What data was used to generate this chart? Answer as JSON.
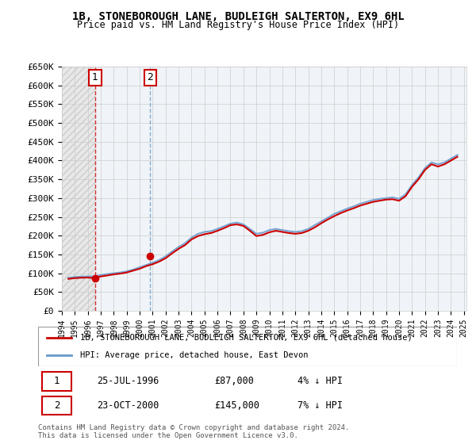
{
  "title": "1B, STONEBOROUGH LANE, BUDLEIGH SALTERTON, EX9 6HL",
  "subtitle": "Price paid vs. HM Land Registry's House Price Index (HPI)",
  "ylabel": "",
  "xlabel": "",
  "ylim": [
    0,
    650000
  ],
  "yticks": [
    0,
    50000,
    100000,
    150000,
    200000,
    250000,
    300000,
    350000,
    400000,
    450000,
    500000,
    550000,
    600000,
    650000
  ],
  "ytick_labels": [
    "£0",
    "£50K",
    "£100K",
    "£150K",
    "£200K",
    "£250K",
    "£300K",
    "£350K",
    "£400K",
    "£450K",
    "£500K",
    "£550K",
    "£600K",
    "£650K"
  ],
  "hpi_years": [
    1994.5,
    1995.0,
    1995.5,
    1996.0,
    1996.5,
    1997.0,
    1997.5,
    1998.0,
    1998.5,
    1999.0,
    1999.5,
    2000.0,
    2000.5,
    2001.0,
    2001.5,
    2002.0,
    2002.5,
    2003.0,
    2003.5,
    2004.0,
    2004.5,
    2005.0,
    2005.5,
    2006.0,
    2006.5,
    2007.0,
    2007.5,
    2008.0,
    2008.5,
    2009.0,
    2009.5,
    2010.0,
    2010.5,
    2011.0,
    2011.5,
    2012.0,
    2012.5,
    2013.0,
    2013.5,
    2014.0,
    2014.5,
    2015.0,
    2015.5,
    2016.0,
    2016.5,
    2017.0,
    2017.5,
    2018.0,
    2018.5,
    2019.0,
    2019.5,
    2020.0,
    2020.5,
    2021.0,
    2021.5,
    2022.0,
    2022.5,
    2023.0,
    2023.5,
    2024.0,
    2024.5
  ],
  "hpi_values": [
    88000,
    90000,
    91000,
    91500,
    92000,
    95000,
    98000,
    100000,
    102000,
    105000,
    110000,
    116000,
    122000,
    128000,
    135000,
    145000,
    158000,
    170000,
    180000,
    195000,
    205000,
    210000,
    212000,
    218000,
    225000,
    232000,
    235000,
    230000,
    218000,
    205000,
    208000,
    215000,
    218000,
    215000,
    212000,
    210000,
    212000,
    218000,
    228000,
    238000,
    248000,
    258000,
    265000,
    272000,
    278000,
    285000,
    290000,
    295000,
    298000,
    300000,
    302000,
    298000,
    310000,
    335000,
    355000,
    380000,
    395000,
    390000,
    395000,
    405000,
    415000
  ],
  "price_years": [
    1994.5,
    1995.0,
    1995.5,
    1996.0,
    1996.5,
    1997.0,
    1997.5,
    1998.0,
    1998.5,
    1999.0,
    1999.5,
    2000.0,
    2000.5,
    2001.0,
    2001.5,
    2002.0,
    2002.5,
    2003.0,
    2003.5,
    2004.0,
    2004.5,
    2005.0,
    2005.5,
    2006.0,
    2006.5,
    2007.0,
    2007.5,
    2008.0,
    2008.5,
    2009.0,
    2009.5,
    2010.0,
    2010.5,
    2011.0,
    2011.5,
    2012.0,
    2012.5,
    2013.0,
    2013.5,
    2014.0,
    2014.5,
    2015.0,
    2015.5,
    2016.0,
    2016.5,
    2017.0,
    2017.5,
    2018.0,
    2018.5,
    2019.0,
    2019.5,
    2020.0,
    2020.5,
    2021.0,
    2021.5,
    2022.0,
    2022.5,
    2023.0,
    2023.5,
    2024.0,
    2024.5
  ],
  "price_values": [
    85000,
    87000,
    88000,
    88500,
    87000,
    91500,
    94000,
    97000,
    99000,
    102000,
    107000,
    112000,
    119000,
    124000,
    131000,
    140000,
    153000,
    165000,
    175000,
    190000,
    199000,
    204000,
    207000,
    213000,
    220000,
    228000,
    230000,
    226000,
    213000,
    199000,
    202000,
    209000,
    213000,
    210000,
    207000,
    205000,
    207000,
    213000,
    222000,
    233000,
    243000,
    252000,
    260000,
    267000,
    273000,
    280000,
    285000,
    290000,
    293000,
    296000,
    297000,
    293000,
    305000,
    330000,
    350000,
    375000,
    390000,
    384000,
    390000,
    400000,
    410000
  ],
  "sale1_x": 1996.57,
  "sale1_y": 87000,
  "sale2_x": 2000.81,
  "sale2_y": 145000,
  "sale1_label": "1",
  "sale2_label": "2",
  "sale1_date": "25-JUL-1996",
  "sale1_price": "£87,000",
  "sale1_hpi": "4% ↓ HPI",
  "sale2_date": "23-OCT-2000",
  "sale2_price": "£145,000",
  "sale2_hpi": "7% ↓ HPI",
  "line_color_price": "#cc0000",
  "line_color_hpi": "#6699cc",
  "dashed_line1_color": "#cc0000",
  "dashed_line2_color": "#6699cc",
  "legend_label_price": "1B, STONEBOROUGH LANE, BUDLEIGH SALTERTON, EX9 6HL (detached house)",
  "legend_label_hpi": "HPI: Average price, detached house, East Devon",
  "footnote": "Contains HM Land Registry data © Crown copyright and database right 2024.\nThis data is licensed under the Open Government Licence v3.0.",
  "bg_color": "#ffffff",
  "hatch_color": "#dddddd",
  "grid_color": "#cccccc",
  "xtick_years": [
    1994,
    1995,
    1996,
    1997,
    1998,
    1999,
    2000,
    2001,
    2002,
    2003,
    2004,
    2005,
    2006,
    2007,
    2008,
    2009,
    2010,
    2011,
    2012,
    2013,
    2014,
    2015,
    2016,
    2017,
    2018,
    2019,
    2020,
    2021,
    2022,
    2023,
    2024,
    2025
  ]
}
